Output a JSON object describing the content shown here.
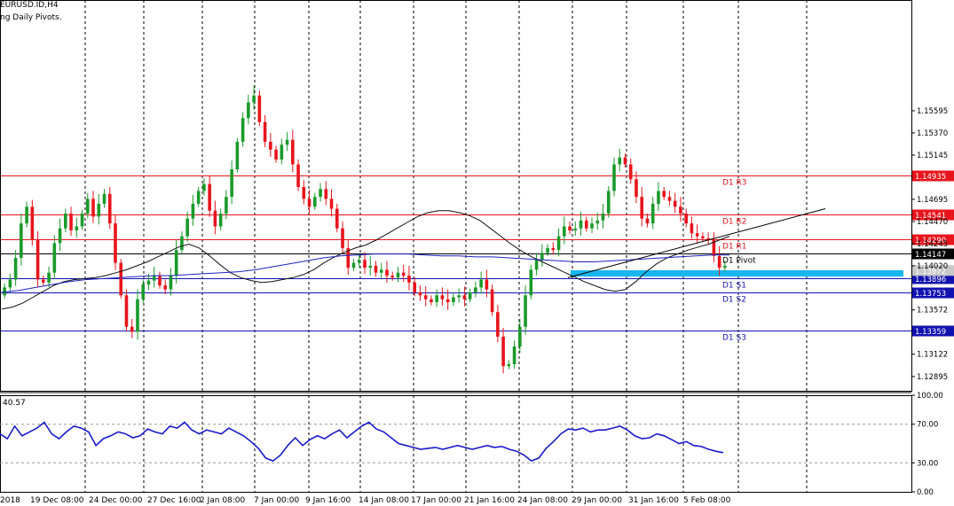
{
  "header": {
    "symbol_line": "EURUSD.ID,H4",
    "indicator_line": "ng Daily Pivots."
  },
  "rsi": {
    "value_label": "40.57",
    "levels": [
      100,
      70,
      30,
      0
    ],
    "level_labels": [
      "100.00",
      "70.00",
      "30.00",
      "0.00"
    ]
  },
  "colors": {
    "bull": "#1a9a2a",
    "bear": "#e8141c",
    "resistance": "#e8141c",
    "support": "#1212b0",
    "pivot": "#000000",
    "ma_fast": "#111111",
    "ma_slow": "#2020c0",
    "zone": "#19b6ef",
    "rsi": "#1a1acc",
    "price_tag": "#000000"
  },
  "chart_data": {
    "type": "candlestick",
    "symbol": "EURUSD.ID",
    "timeframe": "H4",
    "ylim": [
      1.1275,
      1.1672
    ],
    "price_ticks": [
      "1.15595",
      "1.15370",
      "1.15145",
      "1.14695",
      "1.14470",
      "1.14245",
      "1.14020",
      "1.13572",
      "1.13122",
      "1.12895"
    ],
    "x_labels": [
      "2018",
      "19 Dec 08:00",
      "24 Dec 00:00",
      "27 Dec 16:00",
      "2 Jan 08:00",
      "7 Jan 00:00",
      "9 Jan 16:00",
      "14 Jan 08:00",
      "17 Jan 00:00",
      "21 Jan 16:00",
      "24 Jan 08:00",
      "29 Jan 00:00",
      "31 Jan 16:00",
      "5 Feb 08:00"
    ],
    "pivots": [
      {
        "label": "D1 R3",
        "price": 1.14935,
        "tag": "1.14935",
        "kind": "resistance"
      },
      {
        "label": "D1 R2",
        "price": 1.14541,
        "tag": "1.14541",
        "kind": "resistance"
      },
      {
        "label": "D1 R1",
        "price": 1.1429,
        "tag": "1.14290",
        "kind": "resistance"
      },
      {
        "label": "D1 Pivot",
        "price": 1.14147,
        "tag": "1.14147",
        "kind": "pivot"
      },
      {
        "label": "D1 S1",
        "price": 1.13896,
        "tag": "1.13896",
        "kind": "support"
      },
      {
        "label": "D1 S2",
        "price": 1.13753,
        "tag": "1.13753",
        "kind": "support"
      },
      {
        "label": "D1 S3",
        "price": 1.13359,
        "tag": "1.13359",
        "kind": "support"
      }
    ],
    "current_price": {
      "value": 1.13972,
      "tag": "1.13972"
    },
    "support_zone": {
      "price_low": 1.1391,
      "price_high": 1.13975
    },
    "trendline": {
      "from_price": 1.139,
      "to_price": 1.146
    },
    "price_path": [
      1.138,
      1.1388,
      1.141,
      1.1445,
      1.1462,
      1.1428,
      1.1388,
      1.1385,
      1.1395,
      1.1425,
      1.144,
      1.1455,
      1.1438,
      1.1442,
      1.1455,
      1.147,
      1.1452,
      1.1465,
      1.1475,
      1.1445,
      1.1405,
      1.1372,
      1.134,
      1.1335,
      1.1368,
      1.1383,
      1.1387,
      1.1392,
      1.1382,
      1.1378,
      1.1392,
      1.1418,
      1.1432,
      1.145,
      1.1465,
      1.1478,
      1.1485,
      1.1458,
      1.1442,
      1.1455,
      1.1472,
      1.15,
      1.1528,
      1.1552,
      1.1568,
      1.1575,
      1.1548,
      1.1528,
      1.152,
      1.151,
      1.1525,
      1.153,
      1.1505,
      1.1482,
      1.147,
      1.1462,
      1.1472,
      1.148,
      1.147,
      1.146,
      1.144,
      1.142,
      1.14,
      1.1405,
      1.1408,
      1.14,
      1.1402,
      1.1395,
      1.1398,
      1.1392,
      1.139,
      1.1395,
      1.1392,
      1.1385,
      1.1375,
      1.1372,
      1.1368,
      1.1365,
      1.1372,
      1.1368,
      1.1365,
      1.137,
      1.1372,
      1.1368,
      1.1375,
      1.138,
      1.1388,
      1.1378,
      1.1355,
      1.133,
      1.13,
      1.1302,
      1.132,
      1.134,
      1.1372,
      1.1398,
      1.1408,
      1.1415,
      1.142,
      1.1418,
      1.1432,
      1.1442,
      1.1438,
      1.144,
      1.1448,
      1.144,
      1.1445,
      1.1448,
      1.1455,
      1.1478,
      1.1505,
      1.1512,
      1.1505,
      1.149,
      1.1472,
      1.145,
      1.1445,
      1.1465,
      1.1478,
      1.1472,
      1.1468,
      1.1462,
      1.1455,
      1.1445,
      1.1435,
      1.1432,
      1.143,
      1.1428,
      1.1412,
      1.14,
      1.1402
    ],
    "ma_fast_path": [
      1.1358,
      1.136,
      1.1364,
      1.137,
      1.1376,
      1.1382,
      1.1386,
      1.1388,
      1.1389,
      1.139,
      1.1392,
      1.1395,
      1.1398,
      1.1402,
      1.1406,
      1.1411,
      1.1416,
      1.1421,
      1.1424,
      1.142,
      1.1412,
      1.1403,
      1.1395,
      1.139,
      1.1387,
      1.1385,
      1.1386,
      1.1388,
      1.139,
      1.1393,
      1.1398,
      1.1405,
      1.1411,
      1.1416,
      1.142,
      1.1423,
      1.1428,
      1.1434,
      1.144,
      1.1446,
      1.1452,
      1.1456,
      1.1458,
      1.1458,
      1.1456,
      1.1453,
      1.1448,
      1.144,
      1.1432,
      1.1424,
      1.1417,
      1.1411,
      1.1406,
      1.1401,
      1.1396,
      1.1391,
      1.1386,
      1.1382,
      1.1378,
      1.1376,
      1.1378,
      1.1386,
      1.1396,
      1.1404,
      1.141,
      1.1414,
      1.1418,
      1.1421,
      1.1424,
      1.1428,
      1.1432
    ],
    "ma_slow_path": [
      1.1375,
      1.1377,
      1.138,
      1.1383,
      1.1386,
      1.1388,
      1.1389,
      1.139,
      1.1391,
      1.1392,
      1.1392,
      1.1393,
      1.1394,
      1.1395,
      1.1396,
      1.1398,
      1.1401,
      1.1404,
      1.1407,
      1.141,
      1.1412,
      1.1413,
      1.1414,
      1.1414,
      1.1414,
      1.1413,
      1.1412,
      1.1412,
      1.1411,
      1.1411,
      1.141,
      1.1409,
      1.1408,
      1.1407,
      1.1406,
      1.1406,
      1.1407,
      1.1408,
      1.1409,
      1.141,
      1.1411,
      1.1412,
      1.1413,
      1.1413
    ],
    "rsi_values": [
      60,
      55,
      68,
      58,
      62,
      66,
      72,
      60,
      55,
      62,
      68,
      66,
      62,
      48,
      55,
      58,
      62,
      60,
      56,
      58,
      65,
      62,
      60,
      68,
      66,
      72,
      64,
      60,
      64,
      62,
      60,
      66,
      62,
      58,
      52,
      45,
      35,
      32,
      38,
      48,
      56,
      48,
      54,
      58,
      55,
      60,
      64,
      56,
      62,
      68,
      72,
      65,
      62,
      56,
      50,
      48,
      46,
      44,
      45,
      46,
      44,
      46,
      48,
      46,
      44,
      46,
      48,
      46,
      47,
      44,
      42,
      38,
      32,
      35,
      45,
      52,
      60,
      65,
      64,
      66,
      62,
      64,
      64,
      66,
      68,
      64,
      58,
      55,
      56,
      60,
      58,
      54,
      50,
      52,
      48,
      47,
      44,
      42,
      40.57
    ]
  }
}
